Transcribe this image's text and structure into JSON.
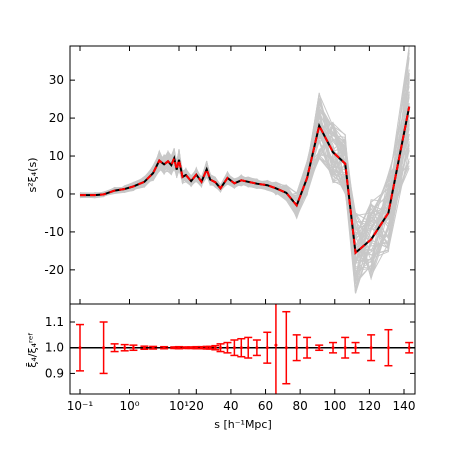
{
  "chart_data": [
    {
      "type": "line",
      "ylabel": "s²ξ₄(s)",
      "yticks": [
        -20,
        -10,
        0,
        10,
        20,
        30
      ],
      "ylim": [
        -29,
        39
      ],
      "x_tick_labels": [
        "10⁻¹",
        "10⁰",
        "10¹",
        "20",
        "40",
        "60",
        "80",
        "100",
        "120",
        "140"
      ],
      "x": [
        0.1,
        0.2,
        0.3,
        0.5,
        0.8,
        1.2,
        2,
        3,
        4,
        5,
        6,
        7,
        8,
        9,
        10,
        12,
        14,
        17,
        20,
        23,
        26,
        28,
        31,
        34,
        38,
        42,
        46,
        50,
        55,
        61,
        66,
        72,
        78,
        84,
        91,
        99,
        106,
        112,
        121,
        131,
        143
      ],
      "series": [
        {
          "values": [
            -0.3,
            -0.3,
            -0.1,
            0.9,
            1.3,
            2.0,
            3.2,
            5.5,
            8.8,
            7.8,
            8.6,
            7.6,
            9.4,
            6.4,
            9.0,
            4.5,
            5.0,
            3.4,
            5.1,
            3.2,
            6.5,
            3.8,
            3.1,
            1.5,
            4.2,
            2.8,
            3.6,
            3.2,
            2.7,
            2.3,
            1.5,
            0.3,
            -3.0,
            4.2,
            18.0,
            11.0,
            8.0,
            -15.5,
            -12.0,
            -5.0,
            23.0
          ],
          "color": "#000000"
        },
        {
          "values": [
            -0.3,
            -0.3,
            -0.1,
            0.9,
            1.3,
            2.0,
            3.2,
            5.5,
            8.8,
            7.8,
            8.6,
            7.6,
            9.4,
            6.4,
            9.0,
            4.5,
            5.0,
            3.4,
            5.1,
            3.2,
            6.5,
            3.8,
            3.1,
            1.5,
            4.2,
            2.8,
            3.6,
            3.2,
            2.7,
            2.3,
            1.5,
            0.3,
            -3.0,
            4.2,
            18.0,
            11.0,
            8.0,
            -15.5,
            -12.0,
            -5.0,
            23.0
          ],
          "color": "#ff0000",
          "style": "dashed"
        }
      ],
      "background_band_color": "#c8c8c8"
    },
    {
      "type": "scatter",
      "ylabel": "ξ̄₄/ξ₄ʳᵉᶠ",
      "yticks": [
        0.9,
        1.0,
        1.1
      ],
      "ylim": [
        0.82,
        1.17
      ],
      "xlabel": "s [h⁻¹Mpc]",
      "x": [
        0.1,
        0.3,
        0.5,
        0.8,
        1.2,
        2,
        3,
        5,
        8,
        10,
        14,
        17,
        20,
        23,
        26,
        28,
        31,
        34,
        38,
        42,
        46,
        50,
        55,
        61,
        66,
        72,
        78,
        84,
        91,
        99,
        106,
        112,
        121,
        131,
        143
      ],
      "y": [
        1.0,
        1.0,
        1.0,
        1.0,
        1.0,
        1.0,
        1.0,
        1.0,
        1.0,
        1.0,
        1.0,
        1.0,
        1.0,
        1.0,
        1.0,
        1.0,
        1.0,
        1.0,
        1.0,
        1.0,
        1.0,
        1.0,
        1.0,
        1.0,
        1.01,
        1.0,
        1.0,
        1.0,
        1.0,
        1.0,
        1.0,
        1.0,
        1.0,
        1.0,
        1.0
      ],
      "yerr": [
        0.09,
        0.1,
        0.015,
        0.012,
        0.01,
        0.006,
        0.005,
        0.004,
        0.003,
        0.004,
        0.003,
        0.003,
        0.004,
        0.004,
        0.005,
        0.005,
        0.008,
        0.015,
        0.02,
        0.03,
        0.035,
        0.04,
        0.03,
        0.06,
        0.25,
        0.14,
        0.05,
        0.04,
        0.01,
        0.02,
        0.04,
        0.02,
        0.05,
        0.07,
        0.02
      ],
      "line_y": 1.0,
      "color": "#ff0000",
      "line_color": "#000000"
    }
  ]
}
